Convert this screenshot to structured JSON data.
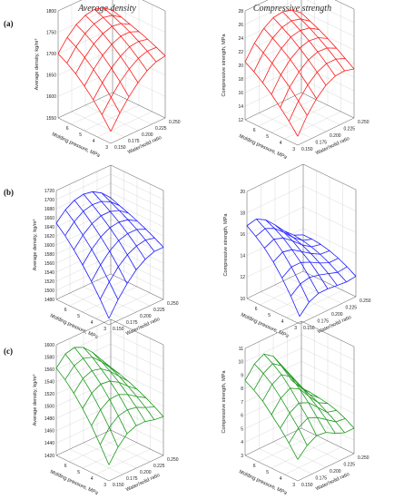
{
  "columns": [
    "Average density",
    "Compressive strength"
  ],
  "rows": [
    "(a)",
    "(b)",
    "(c)"
  ],
  "colors": {
    "a": "#ff1a1a",
    "b": "#1a1aff",
    "c": "#1f9a1f"
  },
  "chart_data": [
    {
      "id": "a-density",
      "row": "(a)",
      "type": "surface",
      "color": "#ff1a1a",
      "xlabel": "Molding pressure, MPa",
      "ylabel": "Water/solid ratio",
      "zlabel": "Average density, kg/m³",
      "xlim": [
        3,
        7
      ],
      "ylim": [
        0.15,
        0.25
      ],
      "zlim": [
        1550,
        1800
      ],
      "xticks": [
        "3",
        "4",
        "5",
        "6"
      ],
      "yticks": [
        "0.150",
        "0.175",
        "0.200",
        "0.225",
        "0.250"
      ],
      "zticks": [
        "1550",
        "1600",
        "1650",
        "1700",
        "1750",
        "1800"
      ],
      "x": [
        7,
        6.333,
        5.667,
        5,
        4.333,
        3.667,
        3
      ],
      "y": [
        0.15,
        0.1667,
        0.1833,
        0.2,
        0.2167,
        0.2333,
        0.25
      ],
      "z": [
        [
          1700,
          1728,
          1748,
          1760,
          1764,
          1758,
          1742
        ],
        [
          1688,
          1716,
          1737,
          1750,
          1755,
          1750,
          1736
        ],
        [
          1673,
          1701,
          1723,
          1737,
          1744,
          1741,
          1729
        ],
        [
          1654,
          1683,
          1706,
          1722,
          1731,
          1731,
          1722
        ],
        [
          1632,
          1662,
          1686,
          1704,
          1716,
          1719,
          1714
        ],
        [
          1607,
          1638,
          1664,
          1684,
          1699,
          1706,
          1705
        ],
        [
          1578,
          1611,
          1639,
          1662,
          1680,
          1691,
          1695
        ]
      ]
    },
    {
      "id": "a-strength",
      "row": "(a)",
      "type": "surface",
      "color": "#ff1a1a",
      "xlabel": "Molding pressure, MPa",
      "ylabel": "Water/solid ratio",
      "zlabel": "Compressive strength, MPa",
      "xlim": [
        3,
        7
      ],
      "ylim": [
        0.15,
        0.25
      ],
      "zlim": [
        12,
        28
      ],
      "xticks": [
        "3",
        "4",
        "5",
        "6"
      ],
      "yticks": [
        "0.150",
        "0.175",
        "0.200",
        "0.225",
        "0.250"
      ],
      "zticks": [
        "12",
        "14",
        "16",
        "18",
        "20",
        "22",
        "24",
        "26",
        "28"
      ],
      "x": [
        7,
        6.333,
        5.667,
        5,
        4.333,
        3.667,
        3
      ],
      "y": [
        0.15,
        0.1667,
        0.1833,
        0.2,
        0.2167,
        0.2333,
        0.25
      ],
      "z": [
        [
          20.5,
          22.6,
          24.1,
          25.0,
          25.2,
          24.8,
          23.7
        ],
        [
          19.7,
          21.8,
          23.3,
          24.2,
          24.5,
          24.1,
          23.1
        ],
        [
          18.7,
          20.9,
          22.4,
          23.4,
          23.7,
          23.4,
          22.5
        ],
        [
          17.6,
          19.8,
          21.4,
          22.4,
          22.8,
          22.6,
          21.8
        ],
        [
          16.3,
          18.6,
          20.2,
          21.3,
          21.8,
          21.7,
          21.0
        ],
        [
          14.9,
          17.2,
          18.9,
          20.1,
          20.7,
          20.7,
          20.1
        ],
        [
          13.3,
          15.7,
          17.5,
          18.8,
          19.5,
          19.6,
          19.2
        ]
      ]
    },
    {
      "id": "b-density",
      "row": "(b)",
      "type": "surface",
      "color": "#1a1aff",
      "xlabel": "Molding pressure, MPa",
      "ylabel": "Water/solid ratio",
      "zlabel": "Average density, kg/m³",
      "xlim": [
        3,
        7
      ],
      "ylim": [
        0.15,
        0.25
      ],
      "zlim": [
        1480,
        1720
      ],
      "xticks": [
        "3",
        "4",
        "5",
        "6"
      ],
      "yticks": [
        "0.150",
        "0.175",
        "0.200",
        "0.225",
        "0.250"
      ],
      "zticks": [
        "1480",
        "1500",
        "1520",
        "1540",
        "1560",
        "1580",
        "1600",
        "1620",
        "1640",
        "1660",
        "1680",
        "1700",
        "1720"
      ],
      "x": [
        7,
        6.333,
        5.667,
        5,
        4.333,
        3.667,
        3
      ],
      "y": [
        0.15,
        0.1667,
        0.1833,
        0.2,
        0.2167,
        0.2333,
        0.25
      ],
      "z": [
        [
          1648,
          1668,
          1680,
          1684,
          1680,
          1668,
          1648
        ],
        [
          1630,
          1651,
          1665,
          1670,
          1668,
          1658,
          1640
        ],
        [
          1608,
          1631,
          1647,
          1655,
          1655,
          1648,
          1633
        ],
        [
          1584,
          1609,
          1627,
          1638,
          1641,
          1637,
          1625
        ],
        [
          1557,
          1584,
          1605,
          1619,
          1625,
          1625,
          1616
        ],
        [
          1527,
          1556,
          1580,
          1597,
          1607,
          1611,
          1606
        ],
        [
          1494,
          1526,
          1552,
          1573,
          1587,
          1595,
          1595
        ]
      ]
    },
    {
      "id": "b-strength",
      "row": "(b)",
      "type": "surface",
      "color": "#1a1aff",
      "xlabel": "Molding pressure, MPa",
      "ylabel": "Water/solid ratio",
      "zlabel": "Compressive strength, MPa",
      "xlim": [
        3,
        7
      ],
      "ylim": [
        0.15,
        0.25
      ],
      "zlim": [
        10,
        20
      ],
      "xticks": [
        "3",
        "4",
        "5",
        "6"
      ],
      "yticks": [
        "0.150",
        "0.175",
        "0.200",
        "0.225",
        "0.250"
      ],
      "zticks": [
        "10",
        "12",
        "14",
        "16",
        "18",
        "20"
      ],
      "x": [
        7,
        6.333,
        5.667,
        5,
        4.333,
        3.667,
        3
      ],
      "y": [
        0.15,
        0.1667,
        0.1833,
        0.2,
        0.2167,
        0.2333,
        0.25
      ],
      "z": [
        [
          16.8,
          17.0,
          16.5,
          15.6,
          14.6,
          13.8,
          13.4
        ],
        [
          16.2,
          16.5,
          16.1,
          15.3,
          14.4,
          13.7,
          13.4
        ],
        [
          15.5,
          15.9,
          15.6,
          14.9,
          14.1,
          13.5,
          13.3
        ],
        [
          14.6,
          15.1,
          14.9,
          14.3,
          13.7,
          13.2,
          13.1
        ],
        [
          13.5,
          14.1,
          14.1,
          13.7,
          13.2,
          12.8,
          12.8
        ],
        [
          12.2,
          12.9,
          13.1,
          12.9,
          12.6,
          12.3,
          12.4
        ],
        [
          10.7,
          11.6,
          12.0,
          12.0,
          11.9,
          11.8,
          11.9
        ]
      ]
    },
    {
      "id": "c-density",
      "row": "(c)",
      "type": "surface",
      "color": "#1f9a1f",
      "xlabel": "Molding pressure, MPa",
      "ylabel": "Water/solid ratio",
      "zlabel": "Average density, kg/m³",
      "xlim": [
        3,
        7
      ],
      "ylim": [
        0.15,
        0.25
      ],
      "zlim": [
        1420,
        1600
      ],
      "xticks": [
        "3",
        "4",
        "5",
        "6"
      ],
      "yticks": [
        "0.150",
        "0.175",
        "0.200",
        "0.225",
        "0.250"
      ],
      "zticks": [
        "1420",
        "1440",
        "1460",
        "1480",
        "1500",
        "1520",
        "1540",
        "1560",
        "1580",
        "1600"
      ],
      "x": [
        7,
        6.333,
        5.667,
        5,
        4.333,
        3.667,
        3
      ],
      "y": [
        0.15,
        0.1667,
        0.1833,
        0.2,
        0.2167,
        0.2333,
        0.25
      ],
      "z": [
        [
          1562,
          1578,
          1582,
          1575,
          1560,
          1541,
          1522
        ],
        [
          1550,
          1566,
          1571,
          1566,
          1552,
          1535,
          1518
        ],
        [
          1535,
          1552,
          1558,
          1554,
          1543,
          1528,
          1513
        ],
        [
          1517,
          1535,
          1543,
          1541,
          1532,
          1519,
          1507
        ],
        [
          1496,
          1515,
          1525,
          1526,
          1519,
          1509,
          1500
        ],
        [
          1472,
          1493,
          1505,
          1508,
          1505,
          1498,
          1492
        ],
        [
          1446,
          1468,
          1483,
          1489,
          1489,
          1485,
          1483
        ]
      ]
    },
    {
      "id": "c-strength",
      "row": "(c)",
      "type": "surface",
      "color": "#1f9a1f",
      "xlabel": "Molding pressure, MPa",
      "ylabel": "Water/solid ratio",
      "zlabel": "Compressive strength, MPa",
      "xlim": [
        3,
        7
      ],
      "ylim": [
        0.15,
        0.25
      ],
      "zlim": [
        3,
        11
      ],
      "xticks": [
        "3",
        "4",
        "5",
        "6"
      ],
      "yticks": [
        "0.150",
        "0.175",
        "0.200",
        "0.225",
        "0.250"
      ],
      "zticks": [
        "3",
        "4",
        "5",
        "6",
        "7",
        "8",
        "9",
        "10",
        "11"
      ],
      "x": [
        7,
        6.333,
        5.667,
        5,
        4.333,
        3.667,
        3
      ],
      "y": [
        0.15,
        0.1667,
        0.1833,
        0.2,
        0.2167,
        0.2333,
        0.25
      ],
      "z": [
        [
          8.6,
          9.5,
          9.9,
          9.4,
          8.2,
          6.9,
          6.0
        ],
        [
          8.2,
          9.1,
          9.5,
          9.0,
          7.9,
          6.7,
          6.0
        ],
        [
          7.7,
          8.6,
          9.0,
          8.5,
          7.5,
          6.5,
          5.9
        ],
        [
          7.0,
          7.9,
          8.3,
          7.9,
          7.0,
          6.2,
          5.8
        ],
        [
          6.3,
          7.1,
          7.5,
          7.2,
          6.5,
          5.8,
          5.6
        ],
        [
          5.5,
          6.3,
          6.7,
          6.4,
          5.9,
          5.4,
          5.3
        ],
        [
          4.6,
          5.3,
          5.7,
          5.6,
          5.2,
          4.9,
          4.9
        ]
      ]
    }
  ]
}
